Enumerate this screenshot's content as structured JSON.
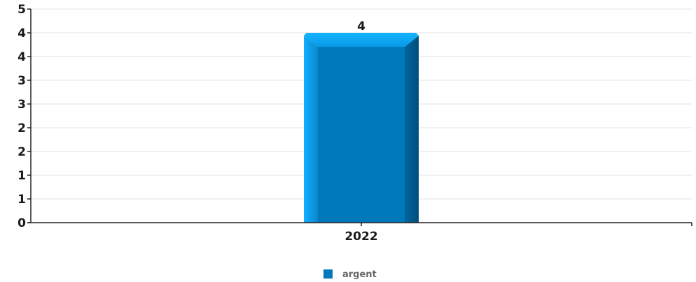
{
  "chart_data": {
    "type": "bar",
    "categories": [
      "2022"
    ],
    "series": [
      {
        "name": "argent",
        "values": [
          4
        ],
        "color": "#0079BA"
      }
    ],
    "y_tick_labels": [
      "0",
      "1",
      "1",
      "2",
      "2",
      "3",
      "3",
      "4",
      "4",
      "5"
    ],
    "y_tick_values": [
      0,
      0.5,
      1,
      1.5,
      2,
      2.5,
      3,
      3.5,
      4,
      4.5
    ],
    "ylim": [
      0,
      4.5
    ],
    "grid": true,
    "legend_position": "bottom-center",
    "bar_style": "3d-beveled",
    "data_labels": [
      "4"
    ]
  }
}
